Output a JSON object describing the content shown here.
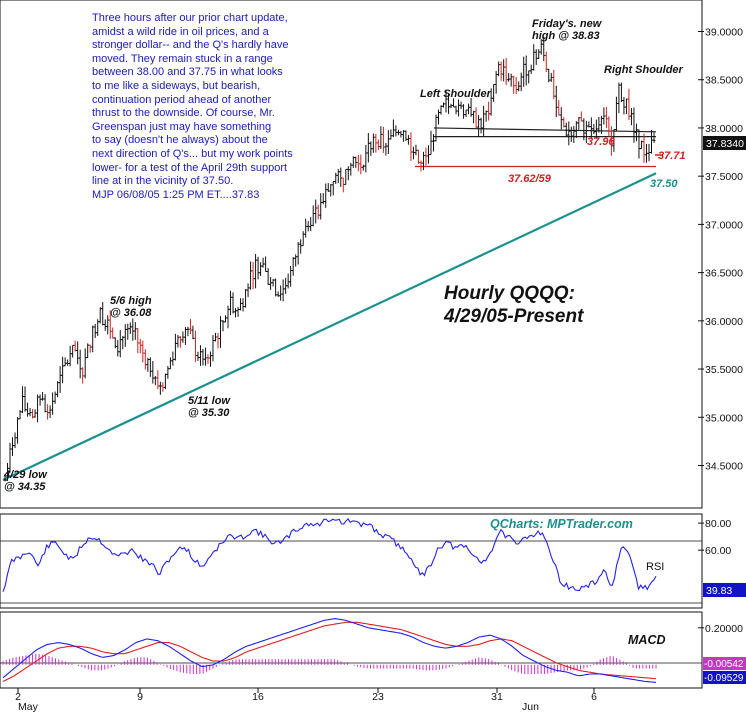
{
  "chart_data": [
    {
      "type": "bar",
      "subtype": "hourly OHLC",
      "title": [
        "Hourly QQQQ:",
        "4/29/05-Present"
      ],
      "symbol": "QQQQ",
      "ylim": [
        34.25,
        39.22
      ],
      "yticks": [
        "39.0000",
        "38.5000",
        "38.0000",
        "37.5000",
        "37.0000",
        "36.5000",
        "36.0000",
        "35.5000",
        "35.0000",
        "34.5000"
      ],
      "ytick_values": [
        39.0,
        38.5,
        38.0,
        37.5,
        37.0,
        36.5,
        36.0,
        35.5,
        35.0,
        34.5
      ],
      "last_price": "37.8340",
      "commentary": [
        "Three hours after our prior chart update,",
        "amidst a wild ride in oil prices, and a",
        "stronger dollar-- and the Q's hardly have",
        "moved. They remain stuck in a range",
        "between 38.00 and 37.75 in what looks",
        "to me like a sideways, but bearish,",
        "continuation period ahead of another",
        "thrust to the downside. Of course, Mr.",
        "Greenspan just may have something",
        "to say (doesn't he always) about the",
        "next direction of Q's... but my work points",
        "lower- for a test of the April 29th support",
        "line at in the vicinity of 37.50.",
        "MJP 06/08/05 1:25 PM ET....37.83"
      ],
      "annotations": [
        {
          "lines": [
            "4/29 low",
            "@ 34.35"
          ],
          "x": "4/29",
          "y": 34.35
        },
        {
          "lines": [
            "5/6 high",
            "@ 36.08"
          ],
          "x": "5/6",
          "y": 36.08
        },
        {
          "lines": [
            "5/11 low",
            "@ 35.30"
          ],
          "x": "5/11",
          "y": 35.3
        },
        {
          "lines": [
            "Left Shoulder"
          ],
          "x": "5/26",
          "y": 38.2
        },
        {
          "lines": [
            "Friday's. new",
            "high @ 38.83"
          ],
          "x": "6/3",
          "y": 38.83
        },
        {
          "lines": [
            "Right Shoulder"
          ],
          "x": "6/7",
          "y": 38.45
        },
        {
          "lines": [
            "37.96"
          ],
          "x": "6/6",
          "y": 37.96
        },
        {
          "lines": [
            "37.62/59"
          ],
          "x": "5/31",
          "y": 37.62
        },
        {
          "lines": [
            "37.71"
          ],
          "x": "6/8",
          "y": 37.71
        },
        {
          "lines": [
            "37.50"
          ],
          "x": "6/8",
          "y": 37.5
        }
      ],
      "lines": [
        {
          "name": "support trendline",
          "from": {
            "x": "4/29",
            "y": 34.35
          },
          "to": {
            "x": "6/8",
            "y": 37.53
          },
          "color": "#1a9090"
        },
        {
          "name": "neckline",
          "from": {
            "x": "5/26",
            "y": 38.0
          },
          "to": {
            "x": "6/8",
            "y": 37.96
          },
          "color": "#222222"
        },
        {
          "name": "neckline 2",
          "from": {
            "x": "5/26",
            "y": 37.91
          },
          "to": {
            "x": "6/8",
            "y": 37.91
          },
          "color": "#222222"
        },
        {
          "name": "37.62/59 support",
          "from": {
            "x": "5/25",
            "y": 37.6
          },
          "to": {
            "x": "6/8",
            "y": 37.6
          },
          "color": "#cc2222"
        }
      ],
      "x_ticks": [
        "2",
        "9",
        "16",
        "23",
        "31",
        "6"
      ],
      "x_month_labels": [
        "May",
        "Jun"
      ],
      "series": [
        {
          "y_path": [
            34.35,
            34.8,
            35.15,
            34.95,
            35.2,
            35.05,
            35.3,
            35.55,
            35.7,
            35.5,
            35.85,
            36.08,
            35.95,
            35.75,
            35.9,
            35.85,
            35.65,
            35.5,
            35.3,
            35.55,
            35.85,
            35.95,
            35.7,
            35.55,
            35.75,
            35.95,
            36.2,
            36.1,
            36.35,
            36.6,
            36.5,
            36.35,
            36.3,
            36.5,
            36.8,
            37.05,
            37.1,
            37.3,
            37.5,
            37.45,
            37.7,
            37.6,
            37.8,
            37.9,
            37.8,
            37.95,
            38.0,
            37.8,
            37.6,
            37.75,
            38.1,
            38.25,
            38.15,
            38.2,
            38.1,
            38.05,
            38.2,
            38.65,
            38.55,
            38.4,
            38.6,
            38.7,
            38.83,
            38.5,
            38.1,
            37.95,
            38.05,
            38.0,
            37.9,
            38.2,
            37.85,
            38.4,
            38.2,
            37.9,
            37.75,
            37.83
          ]
        }
      ]
    },
    {
      "type": "line",
      "indicator": "RSI",
      "label": "RSI",
      "source": "QCharts: MPTrader.com",
      "yticks": [
        "80.00",
        "60.00"
      ],
      "ytick_values": [
        80,
        60
      ],
      "ylim": [
        18,
        86
      ],
      "reference_lines": [
        70,
        30
      ],
      "last_value": "39.83",
      "series": [
        {
          "y_path": [
            30,
            52,
            55,
            60,
            48,
            62,
            66,
            58,
            52,
            63,
            70,
            68,
            62,
            55,
            58,
            60,
            53,
            50,
            42,
            53,
            60,
            62,
            52,
            48,
            58,
            64,
            71,
            68,
            72,
            75,
            70,
            66,
            65,
            72,
            76,
            80,
            78,
            82,
            84,
            80,
            82,
            78,
            80,
            73,
            70,
            66,
            60,
            54,
            40,
            48,
            62,
            66,
            61,
            63,
            56,
            51,
            58,
            74,
            70,
            63,
            70,
            72,
            74,
            55,
            38,
            32,
            31,
            33,
            36,
            45,
            33,
            62,
            55,
            33,
            32,
            39.83
          ]
        }
      ]
    },
    {
      "type": "line",
      "indicator": "MACD",
      "label": "MACD",
      "yticks": [
        "0.20000"
      ],
      "ytick_values": [
        0.2
      ],
      "ylim": [
        -0.12,
        0.28
      ],
      "value_labels": [
        "-0.00542",
        "-0.09529"
      ],
      "series": [
        {
          "name": "MACD",
          "color": "#2222ee",
          "y_path": [
            -0.07,
            -0.02,
            0.03,
            0.08,
            0.11,
            0.12,
            0.11,
            0.09,
            0.06,
            0.04,
            0.05,
            0.08,
            0.12,
            0.14,
            0.13,
            0.1,
            0.06,
            0.02,
            -0.01,
            0.0,
            0.03,
            0.07,
            0.1,
            0.12,
            0.14,
            0.16,
            0.18,
            0.2,
            0.22,
            0.24,
            0.25,
            0.24,
            0.22,
            0.2,
            0.19,
            0.18,
            0.17,
            0.15,
            0.12,
            0.1,
            0.09,
            0.1,
            0.12,
            0.15,
            0.16,
            0.14,
            0.1,
            0.05,
            0.02,
            -0.01,
            -0.03,
            -0.04,
            -0.06,
            -0.05,
            -0.05,
            -0.06,
            -0.07,
            -0.08,
            -0.09,
            -0.095
          ]
        },
        {
          "name": "Signal",
          "color": "#dd2222",
          "y_path": [
            -0.09,
            -0.06,
            -0.02,
            0.02,
            0.06,
            0.09,
            0.1,
            0.1,
            0.09,
            0.07,
            0.06,
            0.06,
            0.08,
            0.1,
            0.12,
            0.12,
            0.1,
            0.07,
            0.04,
            0.02,
            0.02,
            0.04,
            0.07,
            0.09,
            0.11,
            0.13,
            0.15,
            0.17,
            0.19,
            0.21,
            0.22,
            0.23,
            0.23,
            0.22,
            0.21,
            0.2,
            0.19,
            0.17,
            0.15,
            0.13,
            0.11,
            0.1,
            0.1,
            0.11,
            0.13,
            0.14,
            0.13,
            0.1,
            0.07,
            0.04,
            0.01,
            -0.01,
            -0.03,
            -0.04,
            -0.05,
            -0.055,
            -0.06,
            -0.065,
            -0.07,
            -0.075
          ]
        },
        {
          "name": "Histogram",
          "color": "#cc33cc",
          "y_path": [
            0.02,
            0.04,
            0.05,
            0.06,
            0.05,
            0.03,
            0.01,
            -0.01,
            -0.03,
            -0.03,
            -0.01,
            0.02,
            0.04,
            0.04,
            0.01,
            -0.02,
            -0.04,
            -0.05,
            -0.05,
            -0.02,
            0.01,
            0.03,
            0.03,
            0.03,
            0.03,
            0.03,
            0.03,
            0.03,
            0.03,
            0.03,
            0.03,
            0.01,
            -0.01,
            -0.02,
            -0.02,
            -0.02,
            -0.02,
            -0.02,
            -0.03,
            -0.03,
            -0.02,
            0.0,
            0.02,
            0.04,
            0.03,
            0.0,
            -0.03,
            -0.05,
            -0.05,
            -0.05,
            -0.04,
            -0.03,
            -0.03,
            -0.01,
            0.03,
            0.05,
            0.02,
            -0.02,
            -0.02,
            -0.02
          ]
        }
      ]
    }
  ],
  "colors": {
    "bars": "#111111",
    "bars_red": "#cc2222",
    "trendline": "#1a9090",
    "support_label": "#cc2222",
    "rsi": "#2222ee",
    "macd": "#2222ee",
    "signal": "#dd2222",
    "histogram": "#cc33cc",
    "commentary_text": "#1c1cb8",
    "source_text": "#1a9090"
  }
}
